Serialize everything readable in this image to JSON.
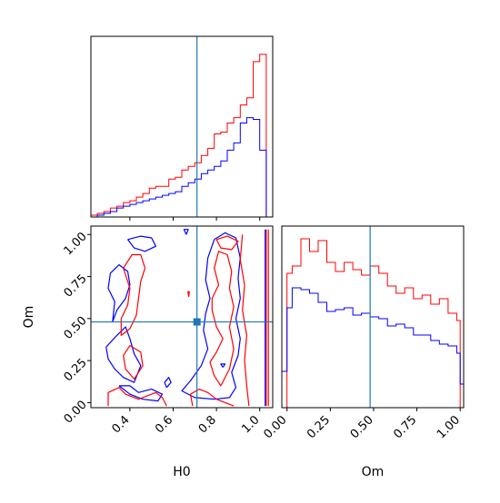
{
  "chart_data": {
    "type": "corner",
    "parameters": [
      "H0",
      "Om"
    ],
    "truth": {
      "H0": 0.71,
      "Om": 0.48
    },
    "colors": {
      "series_a": "#ff0000",
      "series_b": "#0000ff",
      "truth": "#1f77b4"
    },
    "panels": [
      {
        "id": "hist-H0",
        "type": "histogram",
        "xlabel": "",
        "ylabel": "",
        "xlim": [
          0.22,
          1.06
        ],
        "ylim": [
          0,
          1.0
        ],
        "show_y_ticks": false,
        "xticks": [
          0.4,
          0.6,
          0.8,
          1.0
        ],
        "x_tick_labels_visible": false,
        "bins": [
          0.22,
          0.25,
          0.28,
          0.31,
          0.34,
          0.37,
          0.4,
          0.43,
          0.46,
          0.49,
          0.52,
          0.55,
          0.58,
          0.61,
          0.64,
          0.67,
          0.7,
          0.73,
          0.76,
          0.79,
          0.82,
          0.85,
          0.88,
          0.91,
          0.94,
          0.97,
          1.0,
          1.03
        ],
        "series": [
          {
            "name": "",
            "color": "#ff0000",
            "values": [
              0.01,
              0.02,
              0.03,
              0.05,
              0.06,
              0.08,
              0.09,
              0.11,
              0.13,
              0.16,
              0.17,
              0.17,
              0.21,
              0.22,
              0.26,
              0.28,
              0.3,
              0.34,
              0.38,
              0.46,
              0.47,
              0.52,
              0.55,
              0.62,
              0.66,
              0.86,
              0.9,
              0.0
            ]
          },
          {
            "name": "",
            "color": "#0000ff",
            "values": [
              0.0,
              0.01,
              0.02,
              0.03,
              0.05,
              0.06,
              0.07,
              0.08,
              0.09,
              0.1,
              0.11,
              0.12,
              0.13,
              0.14,
              0.17,
              0.19,
              0.21,
              0.24,
              0.26,
              0.28,
              0.31,
              0.37,
              0.41,
              0.52,
              0.55,
              0.54,
              0.37,
              0.0
            ]
          }
        ]
      },
      {
        "id": "contour-H0-Om",
        "type": "contour",
        "xlabel": "H0",
        "ylabel": "Om",
        "xlim": [
          0.22,
          1.06
        ],
        "ylim": [
          -0.03,
          1.05
        ],
        "xticks": [
          0.4,
          0.6,
          0.8,
          1.0
        ],
        "xtick_labels": [
          "0.4",
          "0.6",
          "0.8",
          "1.0"
        ],
        "yticks": [
          0.0,
          0.25,
          0.5,
          0.75,
          1.0
        ],
        "ytick_labels": [
          "0.00",
          "0.25",
          "0.50",
          "0.75",
          "1.00"
        ],
        "contours": [
          {
            "color": "#0000ff",
            "points": [
              [
                0.32,
                0.48
              ],
              [
                0.34,
                0.55
              ],
              [
                0.38,
                0.62
              ],
              [
                0.4,
                0.7
              ],
              [
                0.39,
                0.78
              ],
              [
                0.35,
                0.82
              ],
              [
                0.31,
                0.77
              ],
              [
                0.3,
                0.68
              ],
              [
                0.33,
                0.6
              ],
              [
                0.32,
                0.48
              ]
            ]
          },
          {
            "color": "#0000ff",
            "points": [
              [
                0.29,
                0.33
              ],
              [
                0.34,
                0.4
              ],
              [
                0.38,
                0.45
              ],
              [
                0.4,
                0.38
              ],
              [
                0.42,
                0.29
              ],
              [
                0.45,
                0.22
              ],
              [
                0.42,
                0.12
              ],
              [
                0.37,
                0.15
              ],
              [
                0.33,
                0.2
              ],
              [
                0.3,
                0.26
              ],
              [
                0.29,
                0.33
              ]
            ]
          },
          {
            "color": "#0000ff",
            "points": [
              [
                0.39,
                0.97
              ],
              [
                0.45,
                0.99
              ],
              [
                0.5,
                0.98
              ],
              [
                0.52,
                0.93
              ],
              [
                0.47,
                0.9
              ],
              [
                0.42,
                0.92
              ],
              [
                0.39,
                0.97
              ]
            ]
          },
          {
            "color": "#0000ff",
            "points": [
              [
                0.35,
                0.1
              ],
              [
                0.4,
                0.05
              ],
              [
                0.46,
                0.02
              ],
              [
                0.53,
                0.01
              ],
              [
                0.55,
                0.05
              ],
              [
                0.5,
                0.08
              ],
              [
                0.44,
                0.06
              ],
              [
                0.4,
                0.1
              ],
              [
                0.35,
                0.1
              ]
            ]
          },
          {
            "color": "#0000ff",
            "points": [
              [
                0.79,
                0.97
              ],
              [
                0.76,
                0.86
              ],
              [
                0.75,
                0.73
              ],
              [
                0.77,
                0.62
              ],
              [
                0.75,
                0.53
              ],
              [
                0.74,
                0.43
              ],
              [
                0.76,
                0.32
              ],
              [
                0.73,
                0.22
              ],
              [
                0.68,
                0.13
              ],
              [
                0.64,
                0.07
              ],
              [
                0.7,
                0.03
              ],
              [
                0.79,
                0.02
              ],
              [
                0.86,
                0.03
              ],
              [
                0.89,
                0.09
              ],
              [
                0.87,
                0.18
              ],
              [
                0.9,
                0.28
              ],
              [
                0.91,
                0.38
              ],
              [
                0.89,
                0.5
              ],
              [
                0.91,
                0.62
              ],
              [
                0.9,
                0.74
              ],
              [
                0.91,
                0.86
              ],
              [
                0.89,
                0.98
              ],
              [
                0.84,
                1.01
              ],
              [
                0.79,
                0.97
              ]
            ]
          },
          {
            "color": "#0000ff",
            "points": [
              [
                0.57,
                0.09
              ],
              [
                0.59,
                0.12
              ],
              [
                0.58,
                0.15
              ],
              [
                0.56,
                0.12
              ],
              [
                0.57,
                0.09
              ]
            ]
          },
          {
            "color": "#0000ff",
            "points": [
              [
                0.83,
                0.21
              ],
              [
                0.84,
                0.23
              ],
              [
                0.82,
                0.23
              ],
              [
                0.83,
                0.21
              ]
            ]
          },
          {
            "color": "#0000ff",
            "points": [
              [
                0.66,
                1.0
              ],
              [
                0.67,
                1.03
              ],
              [
                0.65,
                1.03
              ],
              [
                0.66,
                1.0
              ]
            ]
          },
          {
            "color": "#ff0000",
            "points": [
              [
                0.37,
                0.8
              ],
              [
                0.41,
                0.88
              ],
              [
                0.45,
                0.88
              ],
              [
                0.47,
                0.8
              ],
              [
                0.45,
                0.72
              ],
              [
                0.44,
                0.62
              ],
              [
                0.43,
                0.52
              ],
              [
                0.4,
                0.44
              ],
              [
                0.36,
                0.4
              ],
              [
                0.36,
                0.5
              ],
              [
                0.39,
                0.58
              ],
              [
                0.4,
                0.68
              ],
              [
                0.37,
                0.8
              ]
            ]
          },
          {
            "color": "#ff0000",
            "points": [
              [
                0.4,
                0.34
              ],
              [
                0.45,
                0.3
              ],
              [
                0.46,
                0.22
              ],
              [
                0.42,
                0.14
              ],
              [
                0.38,
                0.2
              ],
              [
                0.37,
                0.28
              ],
              [
                0.4,
                0.34
              ]
            ]
          },
          {
            "color": "#ff0000",
            "points": [
              [
                0.3,
                -0.02
              ],
              [
                0.3,
                0.06
              ],
              [
                0.35,
                0.09
              ],
              [
                0.38,
                0.05
              ],
              [
                0.44,
                0.02
              ],
              [
                0.52,
                0.06
              ],
              [
                0.55,
                0.03
              ],
              [
                0.57,
                -0.02
              ]
            ]
          },
          {
            "color": "#ff0000",
            "points": [
              [
                0.78,
                0.55
              ],
              [
                0.8,
                0.45
              ],
              [
                0.83,
                0.38
              ],
              [
                0.8,
                0.3
              ],
              [
                0.77,
                0.24
              ],
              [
                0.79,
                0.16
              ],
              [
                0.82,
                0.1
              ],
              [
                0.86,
                0.2
              ],
              [
                0.88,
                0.32
              ],
              [
                0.86,
                0.45
              ],
              [
                0.88,
                0.57
              ],
              [
                0.86,
                0.68
              ],
              [
                0.87,
                0.78
              ],
              [
                0.85,
                0.88
              ],
              [
                0.81,
                0.9
              ],
              [
                0.79,
                0.8
              ],
              [
                0.81,
                0.7
              ],
              [
                0.78,
                0.62
              ],
              [
                0.78,
                0.55
              ]
            ]
          },
          {
            "color": "#ff0000",
            "points": [
              [
                0.92,
                1.0
              ],
              [
                0.91,
                0.85
              ],
              [
                0.93,
                0.7
              ],
              [
                0.92,
                0.55
              ],
              [
                0.94,
                0.4
              ],
              [
                0.93,
                0.25
              ],
              [
                0.94,
                0.1
              ],
              [
                0.95,
                -0.02
              ]
            ]
          },
          {
            "color": "#ff0000",
            "points": [
              [
                0.69,
                -0.02
              ],
              [
                0.68,
                0.05
              ],
              [
                0.72,
                0.08
              ],
              [
                0.76,
                0.06
              ],
              [
                0.8,
                0.02
              ],
              [
                0.84,
                0.0
              ],
              [
                0.88,
                -0.02
              ]
            ]
          },
          {
            "color": "#ff0000",
            "points": [
              [
                0.8,
                0.97
              ],
              [
                0.85,
                0.99
              ],
              [
                0.9,
                0.96
              ],
              [
                0.87,
                0.91
              ],
              [
                0.82,
                0.92
              ],
              [
                0.8,
                0.97
              ]
            ]
          },
          {
            "color": "#ff0000",
            "points": [
              [
                0.672,
                0.63
              ],
              [
                0.675,
                0.66
              ],
              [
                0.668,
                0.66
              ],
              [
                0.672,
                0.63
              ]
            ]
          },
          {
            "color": "#ff0000",
            "points": [
              [
                1.03,
                -0.02
              ],
              [
                1.03,
                1.03
              ]
            ]
          },
          {
            "color": "#ff0000",
            "points": [
              [
                1.04,
                -0.02
              ],
              [
                1.04,
                1.03
              ]
            ]
          },
          {
            "color": "#0000ff",
            "points": [
              [
                1.025,
                -0.02
              ],
              [
                1.025,
                1.03
              ]
            ]
          }
        ]
      },
      {
        "id": "hist-Om",
        "type": "histogram",
        "xlabel": "Om",
        "ylabel": "",
        "xlim": [
          -0.03,
          1.02
        ],
        "ylim": [
          0,
          1.0
        ],
        "show_y_ticks": false,
        "xticks": [
          0.0,
          0.25,
          0.5,
          0.75,
          1.0
        ],
        "xtick_labels": [
          "0.00",
          "0.25",
          "0.50",
          "0.75",
          "1.00"
        ],
        "bins": [
          -0.03,
          0.0,
          0.03,
          0.08,
          0.13,
          0.18,
          0.23,
          0.28,
          0.33,
          0.38,
          0.43,
          0.48,
          0.53,
          0.58,
          0.63,
          0.68,
          0.73,
          0.78,
          0.83,
          0.88,
          0.93,
          0.98,
          1.0
        ],
        "series": [
          {
            "name": "",
            "color": "#ff0000",
            "values": [
              0.0,
              0.74,
              0.78,
              0.93,
              0.86,
              0.92,
              0.8,
              0.75,
              0.8,
              0.76,
              0.73,
              0.78,
              0.74,
              0.67,
              0.63,
              0.66,
              0.6,
              0.62,
              0.57,
              0.6,
              0.52,
              0.48,
              0.0
            ]
          },
          {
            "name": "",
            "color": "#0000ff",
            "values": [
              0.2,
              0.55,
              0.66,
              0.65,
              0.63,
              0.58,
              0.53,
              0.54,
              0.55,
              0.51,
              0.52,
              0.5,
              0.49,
              0.45,
              0.46,
              0.44,
              0.4,
              0.4,
              0.37,
              0.35,
              0.34,
              0.3,
              0.13
            ]
          }
        ]
      }
    ]
  }
}
